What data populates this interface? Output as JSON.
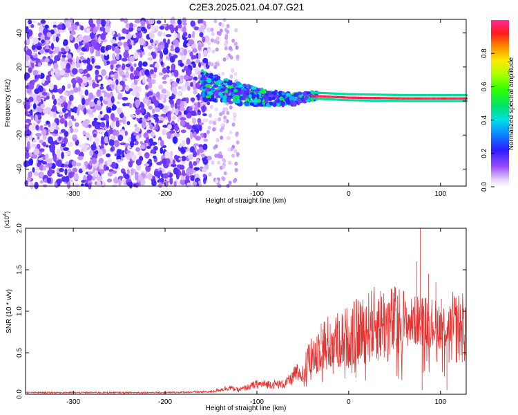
{
  "title": "C2E3.2025.021.04.07.G21",
  "colors": {
    "axis": "#000000",
    "snr_line": "#e8302e",
    "background": "#ffffff"
  },
  "chart_data": [
    {
      "type": "heatmap",
      "xlabel": "Height of straight line (km)",
      "ylabel": "Frequency (Hz)",
      "xlim": [
        -352,
        128
      ],
      "ylim": [
        -50,
        48
      ],
      "x_ticks": [
        -300,
        -200,
        -100,
        0,
        100
      ],
      "y_ticks": [
        -40,
        -20,
        0,
        20,
        40
      ],
      "x_tick_labels": [
        "-300",
        "-200",
        "-100",
        "0",
        "100"
      ],
      "y_tick_labels": [
        "-40",
        "-20",
        "0",
        "20",
        "40"
      ],
      "colorbar": {
        "label": "Normalized spectral amplitude",
        "range": [
          0,
          1
        ],
        "ticks": [
          0.0,
          0.2,
          0.4,
          0.6,
          0.8
        ],
        "tick_labels": [
          "0.0",
          "0.2",
          "0.4",
          "0.6",
          "0.8"
        ]
      },
      "regions": [
        {
          "x_from": -352,
          "x_to": -152,
          "description": "broadband noise, amplitude ~0.0-0.15 across all frequencies"
        },
        {
          "x_from": -152,
          "x_to": -120,
          "description": "sparse weak noise"
        },
        {
          "x_from": -160,
          "x_to": -40,
          "freq_center": 2,
          "amplitude": 0.3,
          "description": "widening signal band"
        },
        {
          "x_from": -40,
          "x_to": 128,
          "freq_center": 1.5,
          "amplitude": 0.95,
          "description": "strong narrow tone"
        }
      ],
      "tone_track": [
        {
          "x": -180,
          "f": 14
        },
        {
          "x": -150,
          "f": 8
        },
        {
          "x": -120,
          "f": 4
        },
        {
          "x": -90,
          "f": 2
        },
        {
          "x": -60,
          "f": 1
        },
        {
          "x": -40,
          "f": 3
        },
        {
          "x": 0,
          "f": 2
        },
        {
          "x": 60,
          "f": 1.5
        },
        {
          "x": 128,
          "f": 1.5
        }
      ]
    },
    {
      "type": "line",
      "xlabel": "Height of straight line (km)",
      "ylabel": "SNR (10 * v/v)",
      "y_multiplier": "(x10",
      "y_multiplier_exp": "4",
      "y_multiplier_close": ")",
      "xlim": [
        -352,
        128
      ],
      "ylim": [
        0,
        2.0
      ],
      "x_ticks": [
        -300,
        -200,
        -100,
        0,
        100
      ],
      "y_ticks": [
        0.0,
        0.5,
        1.0,
        1.5,
        2.0
      ],
      "x_tick_labels": [
        "-300",
        "-200",
        "-100",
        "0",
        "100"
      ],
      "y_tick_labels": [
        "0.0",
        "0.5",
        "1.0",
        "1.5",
        "2.0"
      ],
      "envelope": [
        {
          "x": -352,
          "y": 0.02
        },
        {
          "x": -200,
          "y": 0.02
        },
        {
          "x": -150,
          "y": 0.03
        },
        {
          "x": -130,
          "y": 0.08
        },
        {
          "x": -120,
          "y": 0.05
        },
        {
          "x": -100,
          "y": 0.12
        },
        {
          "x": -70,
          "y": 0.12
        },
        {
          "x": -50,
          "y": 0.3
        },
        {
          "x": -30,
          "y": 0.6
        },
        {
          "x": -10,
          "y": 0.65
        },
        {
          "x": 10,
          "y": 0.75
        },
        {
          "x": 30,
          "y": 0.85
        },
        {
          "x": 60,
          "y": 0.85
        },
        {
          "x": 80,
          "y": 0.9
        },
        {
          "x": 110,
          "y": 0.8
        },
        {
          "x": 128,
          "y": 0.8
        }
      ],
      "spikes": [
        {
          "x": 78,
          "y": 2.0
        },
        {
          "x": 80,
          "y": 0.05
        },
        {
          "x": 74,
          "y": 1.6
        },
        {
          "x": 87,
          "y": 1.45
        },
        {
          "x": 95,
          "y": 1.35
        },
        {
          "x": 101,
          "y": 1.15
        },
        {
          "x": 107,
          "y": 0.05
        },
        {
          "x": -30,
          "y": 0.85
        },
        {
          "x": -45,
          "y": 0.55
        }
      ]
    }
  ]
}
